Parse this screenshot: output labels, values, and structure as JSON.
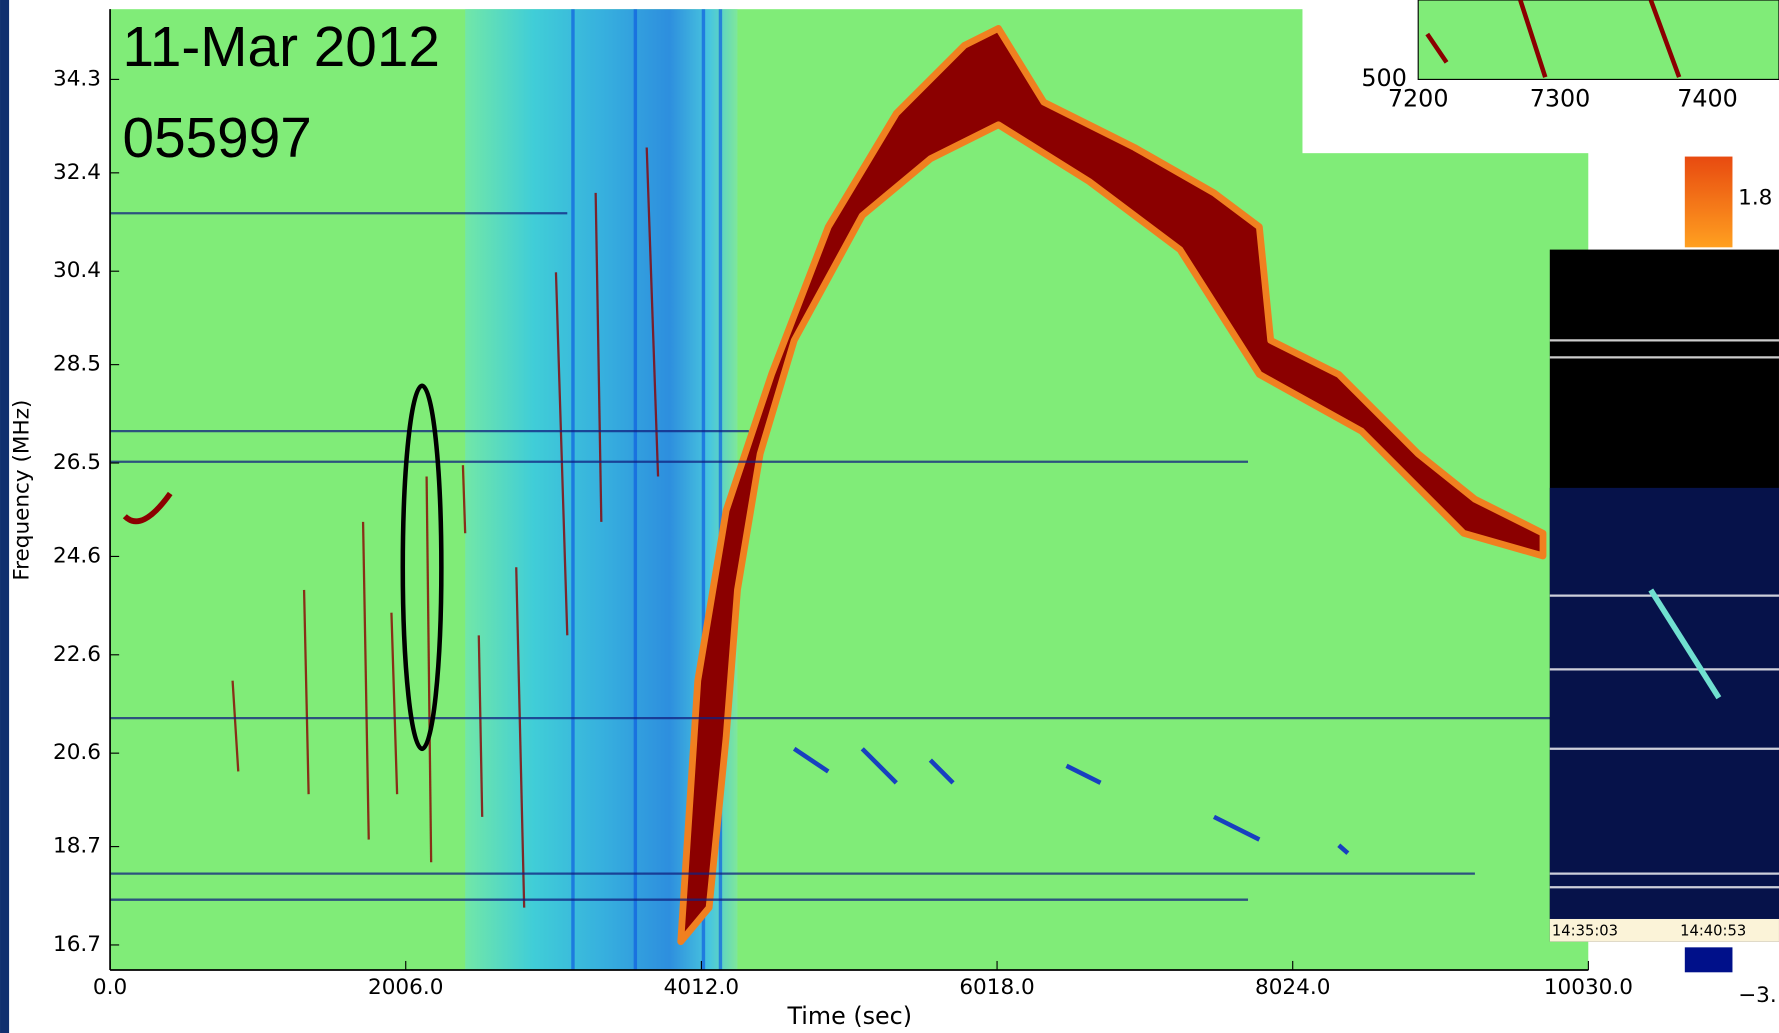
{
  "chart_data": {
    "type": "spectrogram",
    "annotations": [
      "11-Mar 2012",
      "055997"
    ],
    "x_label": "Time (sec)",
    "y_label": "Frequency (MHz)",
    "xlim": [
      0,
      10030
    ],
    "xticks": [
      {
        "value": 0,
        "label": "0.0"
      },
      {
        "value": 2006,
        "label": "2006.0"
      },
      {
        "value": 4012,
        "label": "4012.0"
      },
      {
        "value": 6018,
        "label": "6018.0"
      },
      {
        "value": 8024,
        "label": "8024.0"
      },
      {
        "value": 10030,
        "label": "10030.0"
      }
    ],
    "ylim": [
      16.19,
      35.73
    ],
    "yticks": [
      16.7,
      18.7,
      20.6,
      22.6,
      24.6,
      26.5,
      28.5,
      30.4,
      32.4,
      34.3
    ]
  },
  "inset_plot": {
    "xtick_labels": [
      "7200",
      "7300",
      "7400"
    ],
    "ytick_label": "500"
  },
  "colorbar": {
    "top_label": "1.8",
    "bottom_label": "−3."
  },
  "inset_image": {
    "time_labels": [
      "14:35:03",
      "14:40:53"
    ]
  }
}
